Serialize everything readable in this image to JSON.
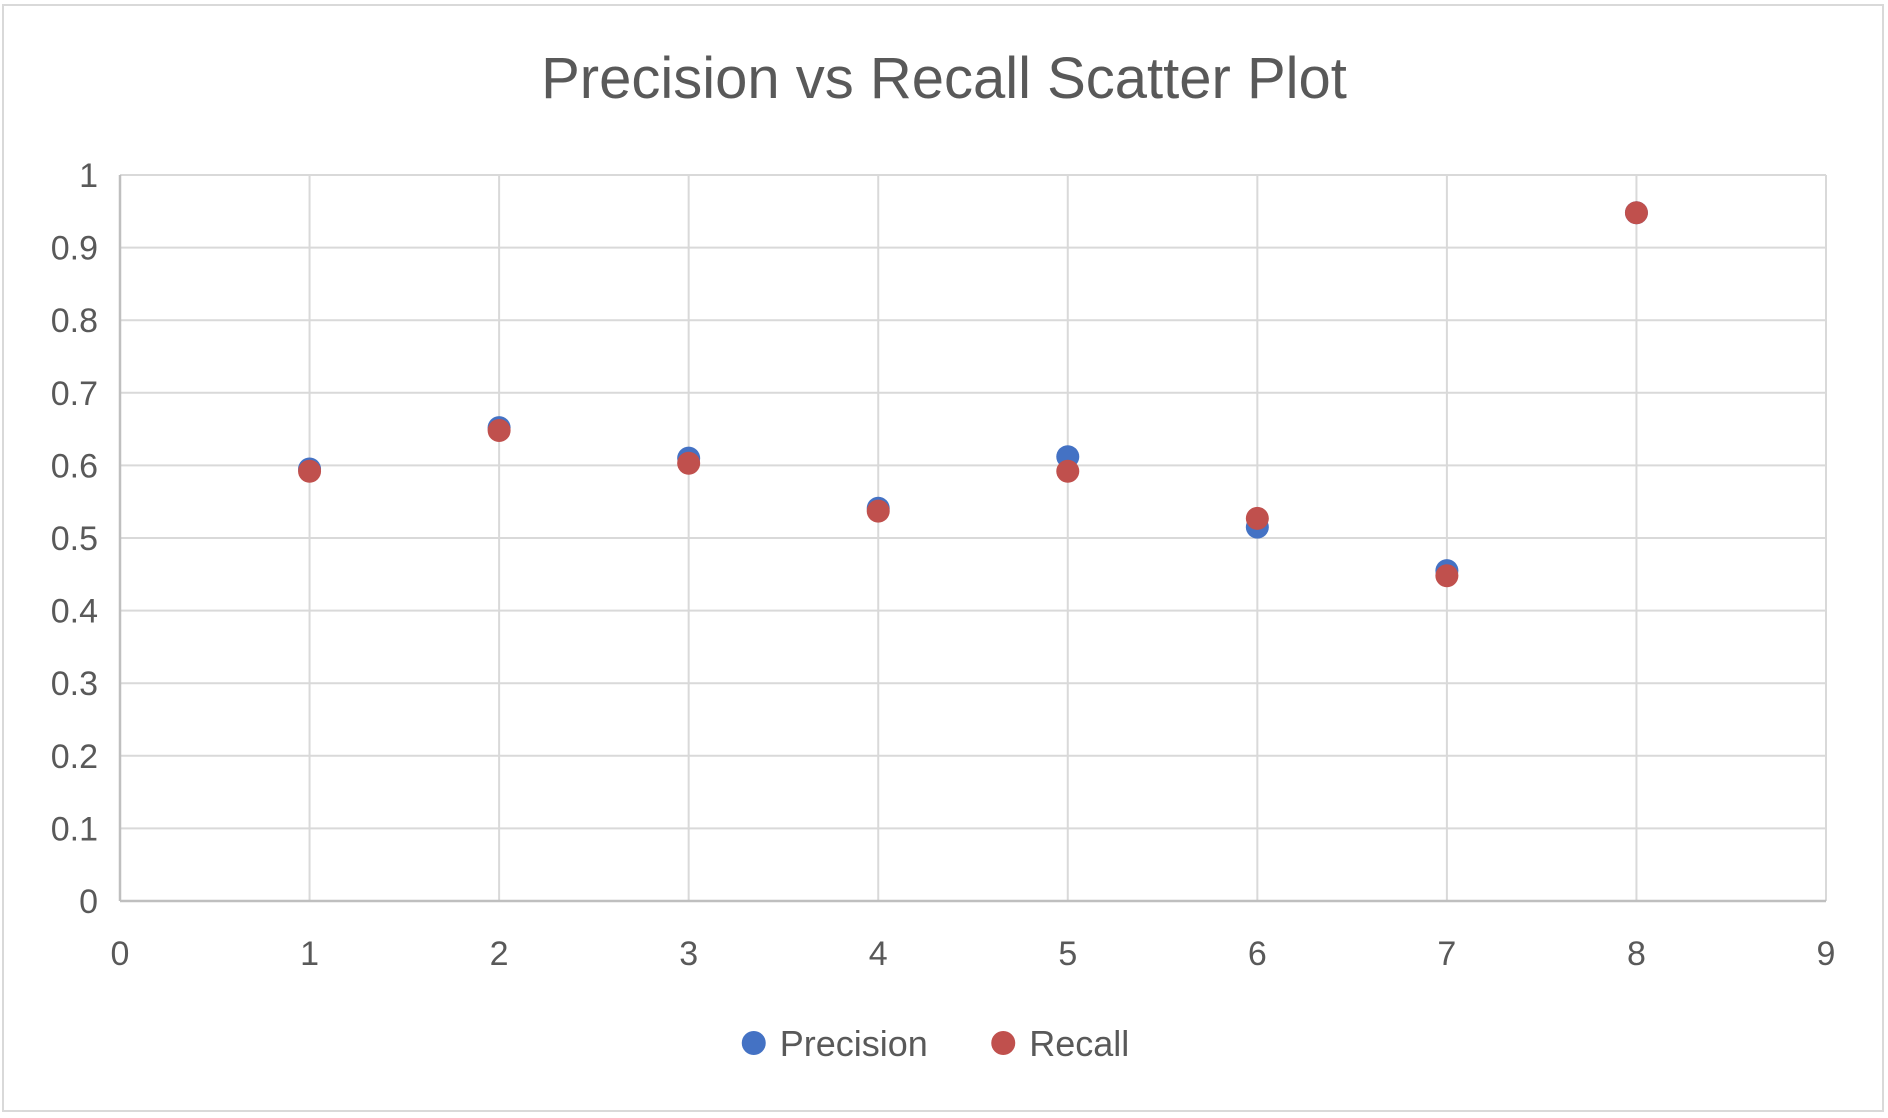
{
  "chart_data": {
    "type": "scatter",
    "title": "Precision vs Recall Scatter Plot",
    "xlabel": "",
    "ylabel": "",
    "xlim": [
      0,
      9
    ],
    "ylim": [
      0,
      1
    ],
    "x_ticks": [
      "0",
      "1",
      "2",
      "3",
      "4",
      "5",
      "6",
      "7",
      "8",
      "9"
    ],
    "y_ticks": [
      "0",
      "0.1",
      "0.2",
      "0.3",
      "0.4",
      "0.5",
      "0.6",
      "0.7",
      "0.8",
      "0.9",
      "1"
    ],
    "grid": true,
    "legend_position": "bottom",
    "series": [
      {
        "name": "Precision",
        "color": "#4472C4",
        "points": [
          {
            "x": 1,
            "y": 0.595
          },
          {
            "x": 2,
            "y": 0.652
          },
          {
            "x": 3,
            "y": 0.61
          },
          {
            "x": 4,
            "y": 0.541
          },
          {
            "x": 5,
            "y": 0.612
          },
          {
            "x": 6,
            "y": 0.515
          },
          {
            "x": 7,
            "y": 0.455
          },
          {
            "x": 8,
            "y": 0.948
          }
        ]
      },
      {
        "name": "Recall",
        "color": "#C0504D",
        "points": [
          {
            "x": 1,
            "y": 0.592
          },
          {
            "x": 2,
            "y": 0.648
          },
          {
            "x": 3,
            "y": 0.603
          },
          {
            "x": 4,
            "y": 0.537
          },
          {
            "x": 5,
            "y": 0.592
          },
          {
            "x": 6,
            "y": 0.527
          },
          {
            "x": 7,
            "y": 0.448
          },
          {
            "x": 8,
            "y": 0.948
          }
        ]
      }
    ]
  }
}
